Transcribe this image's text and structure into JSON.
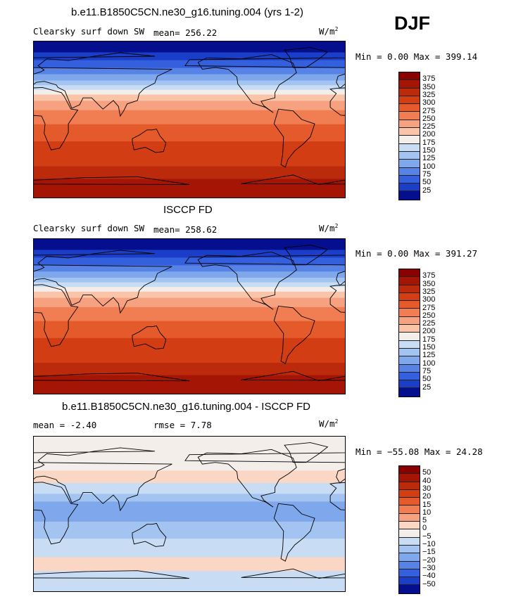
{
  "season": "DJF",
  "panels": [
    {
      "id": "model",
      "title": "b.e11.B1850C5CN.ne30_g16.tuning.004 (yrs 1-2)",
      "left_label": "Clearsky surf down SW",
      "stat_label": "mean=",
      "stat_value": "256.22",
      "stat2_label": "",
      "stat2_value": "",
      "units": "W/m",
      "units_exp": "2",
      "minmax": "Min =   0.00 Max = 399.14"
    },
    {
      "id": "obs",
      "title": "ISCCP FD",
      "left_label": "Clearsky surf down SW",
      "stat_label": "mean=",
      "stat_value": "258.62",
      "stat2_label": "",
      "stat2_value": "",
      "units": "W/m",
      "units_exp": "2",
      "minmax": "Min =   0.00 Max = 391.27"
    },
    {
      "id": "diff",
      "title": "b.e11.B1850C5CN.ne30_g16.tuning.004 - ISCCP FD",
      "left_label": "",
      "stat_label": "mean =",
      "stat_value": "-2.40",
      "stat2_label": "rmse =",
      "stat2_value": "7.78",
      "units": "W/m",
      "units_exp": "2",
      "minmax": "Min = −55.08 Max =  24.28"
    }
  ],
  "colorbars": {
    "field": {
      "labels": [
        "375",
        "350",
        "325",
        "300",
        "275",
        "250",
        "225",
        "200",
        "175",
        "150",
        "125",
        "100",
        "75",
        "50",
        "25"
      ],
      "colors": [
        "#8b0000",
        "#a51505",
        "#bc2a0c",
        "#d23d13",
        "#e55a2a",
        "#f07e52",
        "#f6a17f",
        "#fac4a8",
        "#f3eeea",
        "#c8dcf4",
        "#a3c4f0",
        "#7fa7ec",
        "#5883e6",
        "#3560dd",
        "#1a3ec8",
        "#050e8c"
      ]
    },
    "diff": {
      "labels": [
        "50",
        "40",
        "30",
        "20",
        "15",
        "10",
        "5",
        "0",
        "−5",
        "−10",
        "−15",
        "−20",
        "−30",
        "−40",
        "−50"
      ],
      "colors": [
        "#8b0000",
        "#a51505",
        "#bc2a0c",
        "#d23d13",
        "#e55a2a",
        "#f07e52",
        "#f6a17f",
        "#fad6c4",
        "#f3eeea",
        "#c8dcf4",
        "#a3c4f0",
        "#7fa7ec",
        "#5883e6",
        "#3560dd",
        "#1a3ec8",
        "#050e8c"
      ]
    }
  },
  "map_data": {
    "field_bands": [
      [
        "#050e8c",
        0.07
      ],
      [
        "#1a3ec8",
        0.12
      ],
      [
        "#3560dd",
        0.17
      ],
      [
        "#5883e6",
        0.21
      ],
      [
        "#7fa7ec",
        0.25
      ],
      [
        "#a3c4f0",
        0.28
      ],
      [
        "#c8dcf4",
        0.31
      ],
      [
        "#f3eeea",
        0.34
      ],
      [
        "#fac4a8",
        0.38
      ],
      [
        "#f6a17f",
        0.44
      ],
      [
        "#f07e52",
        0.53
      ],
      [
        "#e55a2a",
        0.64
      ],
      [
        "#d23d13",
        0.8
      ],
      [
        "#bc2a0c",
        0.88
      ],
      [
        "#a51505",
        1.0
      ]
    ],
    "diff_bands": [
      [
        "#f3eeea",
        0.22
      ],
      [
        "#fad6c4",
        0.3
      ],
      [
        "#c8dcf4",
        0.37
      ],
      [
        "#a3c4f0",
        0.42
      ],
      [
        "#7fa7ec",
        0.55
      ],
      [
        "#a3c4f0",
        0.66
      ],
      [
        "#c8dcf4",
        0.78
      ],
      [
        "#fad6c4",
        0.87
      ],
      [
        "#c8dcf4",
        1.0
      ]
    ]
  }
}
